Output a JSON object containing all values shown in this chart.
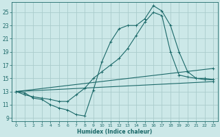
{
  "background_color": "#cce8e8",
  "grid_color": "#aacccc",
  "line_color": "#1a6868",
  "xlabel": "Humidex (Indice chaleur)",
  "xlim": [
    -0.5,
    23.5
  ],
  "ylim": [
    8.5,
    26.5
  ],
  "xticks": [
    0,
    1,
    2,
    3,
    4,
    5,
    6,
    7,
    8,
    9,
    10,
    11,
    12,
    13,
    14,
    15,
    16,
    17,
    18,
    19,
    20,
    21,
    22,
    23
  ],
  "yticks": [
    9,
    11,
    13,
    15,
    17,
    19,
    21,
    23,
    25
  ],
  "line1_x": [
    0,
    1,
    2,
    3,
    4,
    5,
    6,
    7,
    8,
    9,
    10,
    11,
    12,
    13,
    14,
    15,
    16,
    17,
    18,
    19,
    20,
    21,
    22,
    23
  ],
  "line1_y": [
    13.0,
    12.8,
    12.0,
    11.8,
    11.0,
    10.5,
    10.2,
    9.5,
    9.3,
    13.2,
    17.5,
    20.5,
    22.5,
    23.0,
    23.0,
    24.0,
    26.0,
    25.2,
    23.0,
    19.0,
    16.0,
    15.0,
    14.8,
    14.8
  ],
  "line2_x": [
    0,
    1,
    2,
    3,
    4,
    5,
    6,
    7,
    8,
    9,
    10,
    11,
    12,
    13,
    14,
    15,
    16,
    17,
    18,
    19,
    20,
    21,
    22,
    23
  ],
  "line2_y": [
    13.0,
    12.5,
    12.2,
    12.0,
    11.8,
    11.5,
    11.5,
    12.5,
    13.5,
    15.0,
    16.0,
    17.0,
    18.0,
    19.5,
    21.5,
    23.5,
    25.0,
    24.5,
    19.0,
    15.5,
    15.2,
    15.0,
    15.0,
    14.8
  ],
  "line3_x": [
    0,
    23
  ],
  "line3_y": [
    13.0,
    14.5
  ],
  "line4_x": [
    0,
    23
  ],
  "line4_y": [
    13.0,
    16.5
  ]
}
